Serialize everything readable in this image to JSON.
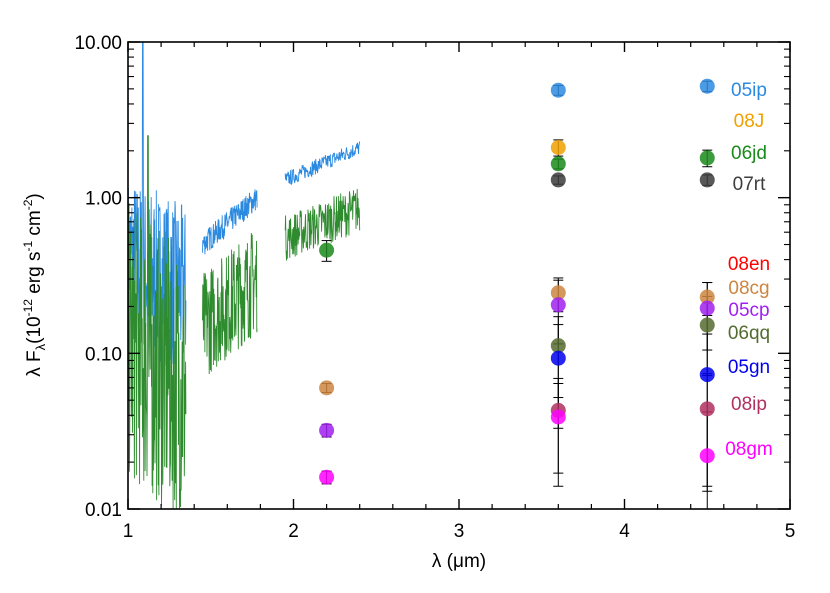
{
  "chart_data": {
    "type": "scatter",
    "x_axis": {
      "label": "λ (μm)",
      "range": [
        1,
        5
      ],
      "ticks": [
        1,
        2,
        3,
        4,
        5
      ],
      "tick_labels": [
        "1",
        "2",
        "3",
        "4",
        "5"
      ]
    },
    "y_axis": {
      "label": "λ F",
      "label_subscript": "λ",
      "label_units_prefix": "(10",
      "label_units_exp1": "-12",
      "label_units_mid": " erg s",
      "label_units_exp2": "-1",
      "label_units_mid2": " cm",
      "label_units_exp3": "-2",
      "label_units_suffix": ")",
      "scale": "log",
      "range": [
        0.01,
        10
      ],
      "ticks": [
        0.01,
        0.1,
        1,
        10
      ],
      "tick_labels": [
        "0.01",
        "0.10",
        "1.00",
        "10.00"
      ]
    },
    "legend_placement": "right side, inside plot area",
    "series": [
      {
        "name": "05ip",
        "color": "#2b8ae0",
        "points": [
          [
            3.6,
            4.9,
            0.35
          ],
          [
            4.5,
            5.2,
            0.4
          ]
        ]
      },
      {
        "name": "08J",
        "color": "#f0a000",
        "points": [
          [
            3.6,
            2.1,
            0.25
          ]
        ]
      },
      {
        "name": "06jd",
        "color": "#1a8a1a",
        "points": [
          [
            2.2,
            0.46,
            0.07
          ],
          [
            3.6,
            1.65,
            0.12
          ],
          [
            4.5,
            1.8,
            0.22
          ]
        ]
      },
      {
        "name": "07rt",
        "color": "#3c3c3c",
        "points": [
          [
            3.6,
            1.3,
            0.08
          ],
          [
            4.5,
            1.3,
            0.1
          ]
        ]
      },
      {
        "name": "08en",
        "color": "#ff0000",
        "points": []
      },
      {
        "name": "08cg",
        "color": "#cd8540",
        "points": [
          [
            2.2,
            0.06,
            0.004
          ],
          [
            3.6,
            0.245,
            0.06
          ],
          [
            4.5,
            0.23,
            0.055
          ]
        ]
      },
      {
        "name": "05cp",
        "color": "#a020f0",
        "points": [
          [
            2.2,
            0.032,
            0.003
          ],
          [
            3.6,
            0.205,
            0.09
          ],
          [
            4.5,
            0.195,
            0.09
          ]
        ]
      },
      {
        "name": "06qq",
        "color": "#556b2f",
        "points": [
          [
            3.6,
            0.112,
            0.06
          ],
          [
            4.5,
            0.152,
            0.08
          ]
        ]
      },
      {
        "name": "05gn",
        "color": "#0000ee",
        "points": [
          [
            3.6,
            0.093,
            0.06
          ],
          [
            4.5,
            0.073,
            0.06
          ]
        ]
      },
      {
        "name": "08ip",
        "color": "#b03060",
        "points": [
          [
            3.6,
            0.043,
            0.026
          ],
          [
            4.5,
            0.044,
            0.03
          ]
        ]
      },
      {
        "name": "08gm",
        "color": "#ff00ff",
        "points": [
          [
            2.2,
            0.016,
            0.0015
          ],
          [
            3.6,
            0.039,
            0.025
          ],
          [
            4.5,
            0.022,
            0.02
          ]
        ]
      }
    ],
    "spectra": [
      {
        "color": "#2b8ae0",
        "segments": [
          {
            "from": 1.0,
            "to": 1.35,
            "y_start": 0.4,
            "y_end": 0.25,
            "noise": 0.55,
            "spike": [
              1.09,
              10
            ]
          },
          {
            "from": 1.45,
            "to": 1.78,
            "y_start": 0.5,
            "y_end": 1.0,
            "noise": 0.08
          },
          {
            "from": 1.95,
            "to": 2.4,
            "y_start": 1.3,
            "y_end": 2.1,
            "noise": 0.05
          }
        ]
      },
      {
        "color": "#2e8b2e",
        "segments": [
          {
            "from": 1.0,
            "to": 1.35,
            "y_start": 0.12,
            "y_end": 0.06,
            "noise": 0.9,
            "spike": [
              1.12,
              2.5
            ]
          },
          {
            "from": 1.45,
            "to": 1.78,
            "y_start": 0.15,
            "y_end": 0.3,
            "noise": 0.35
          },
          {
            "from": 1.95,
            "to": 2.4,
            "y_start": 0.55,
            "y_end": 0.85,
            "noise": 0.15
          }
        ]
      }
    ]
  }
}
